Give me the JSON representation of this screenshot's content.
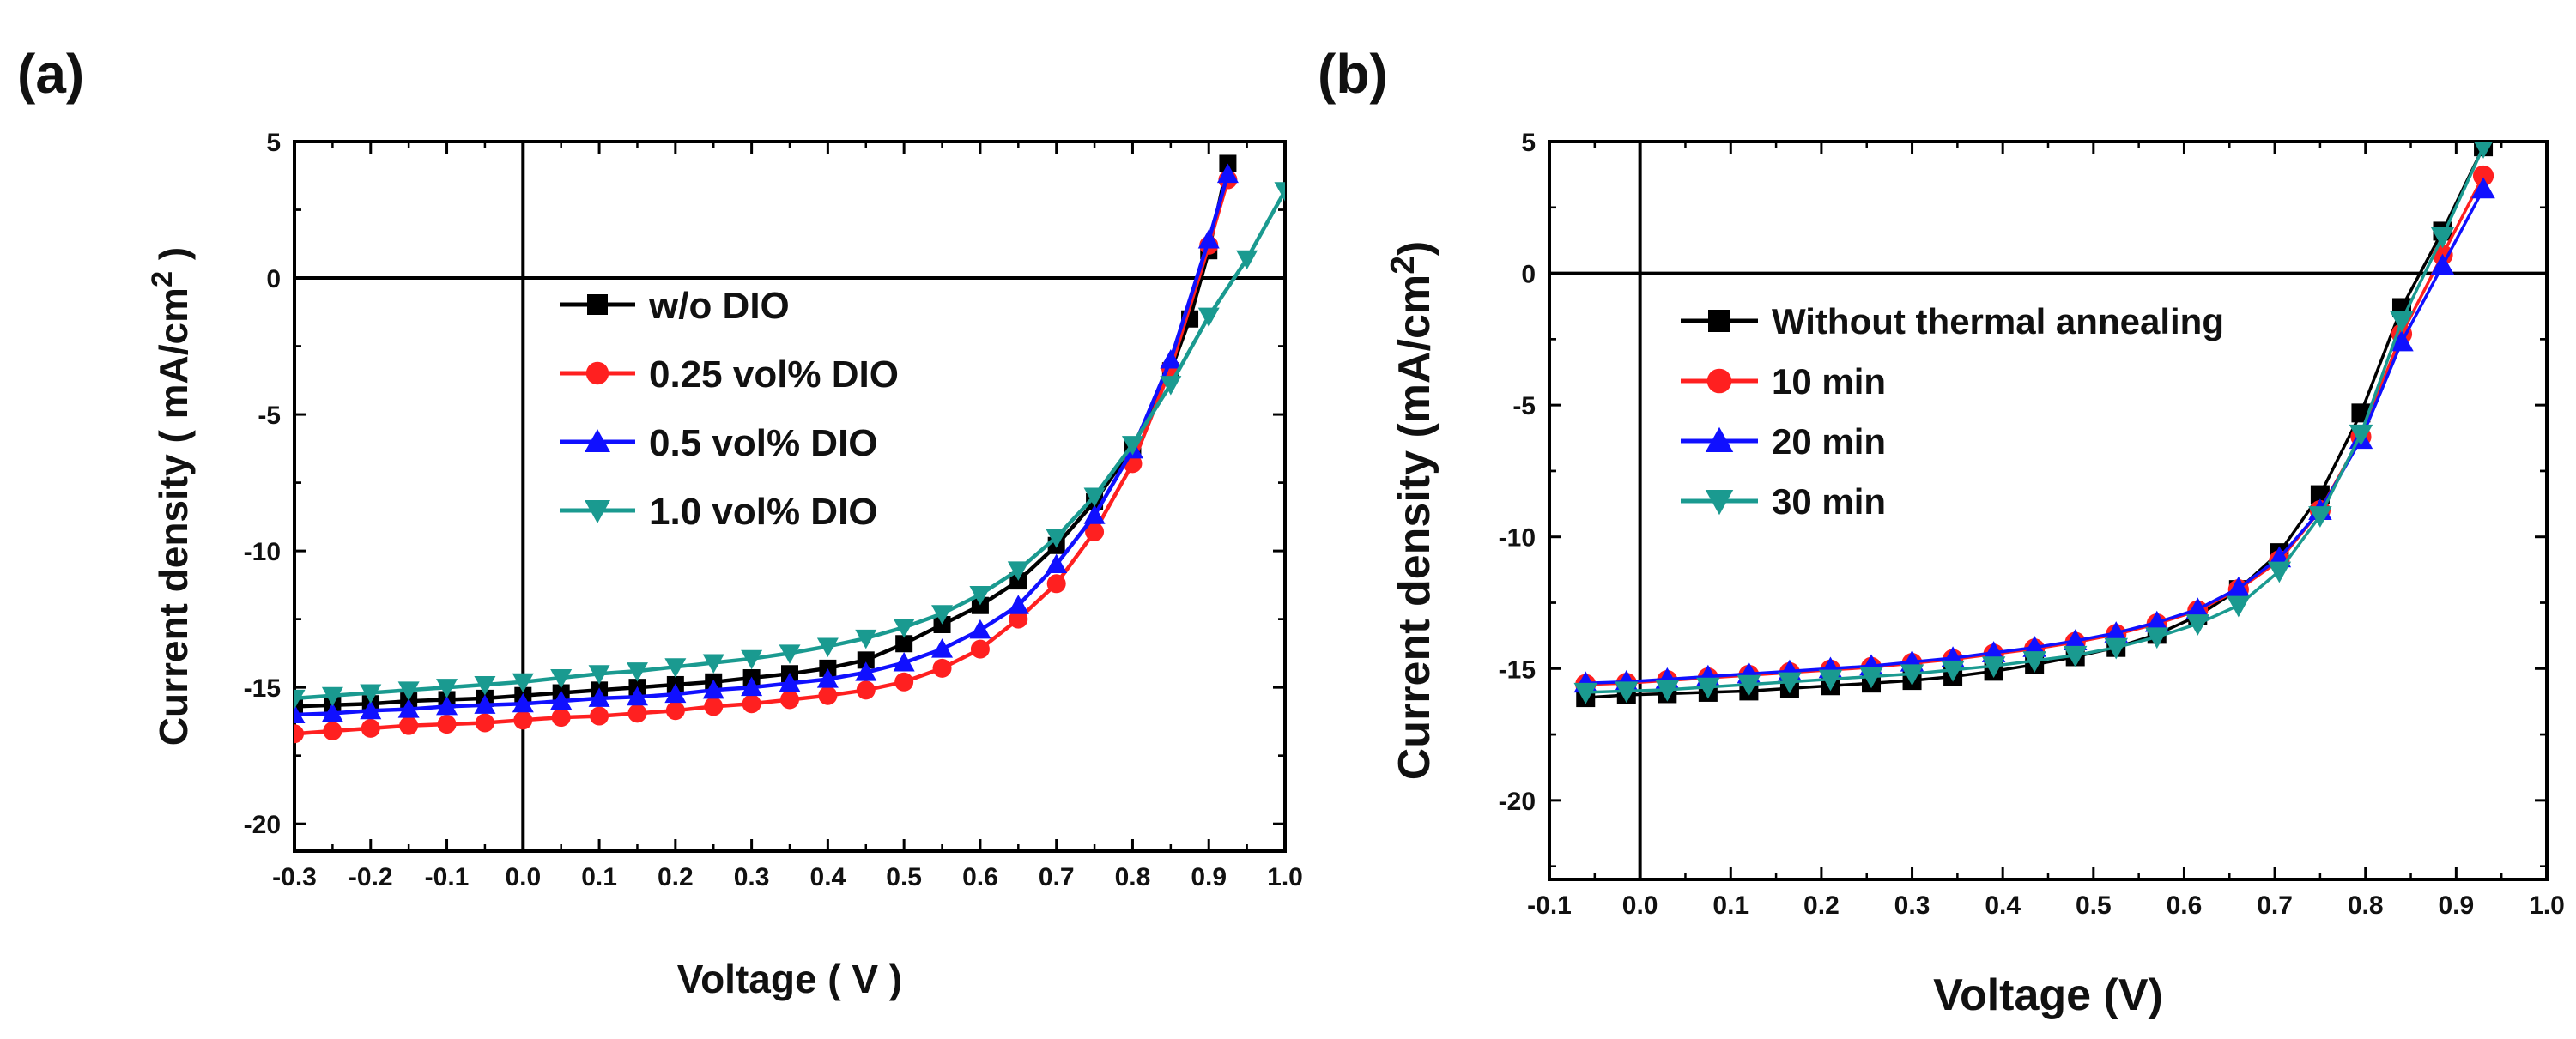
{
  "chart_data": [
    {
      "panel_label": "(a)",
      "type": "line",
      "xlabel": "Voltage ( V )",
      "ylabel": "Current density ( mA/cm",
      "ylabel_sup": "2",
      "ylabel_end": " )",
      "xlim": [
        -0.3,
        1.0
      ],
      "ylim": [
        -21,
        5
      ],
      "xticks": [
        "-0.3",
        "-0.2",
        "-0.1",
        "0.0",
        "0.1",
        "0.2",
        "0.3",
        "0.4",
        "0.5",
        "0.6",
        "0.7",
        "0.8",
        "0.9",
        "1.0"
      ],
      "yticks": [
        "5",
        "0",
        "-5",
        "-10",
        "-15",
        "-20"
      ],
      "legend_position": "center-right",
      "series": [
        {
          "name": "w/o DIO",
          "color": "#000000",
          "marker": "square",
          "x": [
            -0.3,
            -0.25,
            -0.2,
            -0.15,
            -0.1,
            -0.05,
            0,
            0.05,
            0.1,
            0.15,
            0.2,
            0.25,
            0.3,
            0.35,
            0.4,
            0.45,
            0.5,
            0.55,
            0.6,
            0.65,
            0.7,
            0.75,
            0.8,
            0.85,
            0.875,
            0.9,
            0.925
          ],
          "y": [
            -15.7,
            -15.65,
            -15.6,
            -15.5,
            -15.45,
            -15.4,
            -15.3,
            -15.2,
            -15.1,
            -15.0,
            -14.9,
            -14.8,
            -14.65,
            -14.5,
            -14.3,
            -14.0,
            -13.4,
            -12.7,
            -12.0,
            -11.1,
            -9.8,
            -8.2,
            -6.2,
            -3.4,
            -1.5,
            1.0,
            4.2
          ]
        },
        {
          "name": "0.25 vol% DIO",
          "color": "#ff2020",
          "marker": "circle",
          "x": [
            -0.3,
            -0.25,
            -0.2,
            -0.15,
            -0.1,
            -0.05,
            0,
            0.05,
            0.1,
            0.15,
            0.2,
            0.25,
            0.3,
            0.35,
            0.4,
            0.45,
            0.5,
            0.55,
            0.6,
            0.65,
            0.7,
            0.75,
            0.8,
            0.85,
            0.9,
            0.925
          ],
          "y": [
            -16.7,
            -16.6,
            -16.5,
            -16.4,
            -16.35,
            -16.3,
            -16.2,
            -16.1,
            -16.05,
            -15.95,
            -15.85,
            -15.7,
            -15.6,
            -15.45,
            -15.3,
            -15.1,
            -14.8,
            -14.3,
            -13.6,
            -12.5,
            -11.2,
            -9.3,
            -6.8,
            -3.3,
            1.2,
            3.6
          ]
        },
        {
          "name": "0.5 vol% DIO",
          "color": "#1010ff",
          "marker": "triangle-up",
          "x": [
            -0.3,
            -0.25,
            -0.2,
            -0.15,
            -0.1,
            -0.05,
            0,
            0.05,
            0.1,
            0.15,
            0.2,
            0.25,
            0.3,
            0.35,
            0.4,
            0.45,
            0.5,
            0.55,
            0.6,
            0.65,
            0.7,
            0.75,
            0.8,
            0.85,
            0.9,
            0.925
          ],
          "y": [
            -16.0,
            -15.95,
            -15.85,
            -15.8,
            -15.7,
            -15.65,
            -15.6,
            -15.5,
            -15.4,
            -15.35,
            -15.25,
            -15.1,
            -15.0,
            -14.85,
            -14.7,
            -14.45,
            -14.1,
            -13.6,
            -12.9,
            -12.0,
            -10.5,
            -8.7,
            -6.3,
            -3.0,
            1.4,
            3.8
          ]
        },
        {
          "name": "1.0 vol% DIO",
          "color": "#1a9a90",
          "marker": "triangle-down",
          "x": [
            -0.3,
            -0.25,
            -0.2,
            -0.15,
            -0.1,
            -0.05,
            0,
            0.05,
            0.1,
            0.15,
            0.2,
            0.25,
            0.3,
            0.35,
            0.4,
            0.45,
            0.5,
            0.55,
            0.6,
            0.65,
            0.7,
            0.75,
            0.8,
            0.85,
            0.9,
            0.95,
            1.0
          ],
          "y": [
            -15.4,
            -15.3,
            -15.2,
            -15.1,
            -15.0,
            -14.9,
            -14.8,
            -14.65,
            -14.5,
            -14.4,
            -14.25,
            -14.1,
            -13.95,
            -13.75,
            -13.5,
            -13.2,
            -12.8,
            -12.3,
            -11.6,
            -10.7,
            -9.5,
            -8.0,
            -6.1,
            -3.9,
            -1.4,
            0.7,
            3.2
          ]
        }
      ]
    },
    {
      "panel_label": "(b)",
      "type": "line",
      "xlabel": "Voltage (V)",
      "ylabel": "Current density (mA/cm",
      "ylabel_sup": "2",
      "ylabel_end": ")",
      "xlim": [
        -0.1,
        1.0
      ],
      "ylim": [
        -23,
        5
      ],
      "xticks": [
        "-0.1",
        "0.0",
        "0.1",
        "0.2",
        "0.3",
        "0.4",
        "0.5",
        "0.6",
        "0.7",
        "0.8",
        "0.9",
        "1.0"
      ],
      "yticks": [
        "5",
        "0",
        "-5",
        "-10",
        "-15",
        "-20"
      ],
      "legend_position": "center-left",
      "series": [
        {
          "name": "Without thermal annealing",
          "color": "#000000",
          "marker": "square",
          "x": [
            -0.06,
            -0.015,
            0.03,
            0.075,
            0.12,
            0.165,
            0.21,
            0.255,
            0.3,
            0.345,
            0.39,
            0.435,
            0.48,
            0.525,
            0.57,
            0.615,
            0.66,
            0.705,
            0.75,
            0.795,
            0.84,
            0.885,
            0.93
          ],
          "y": [
            -16.1,
            -16.0,
            -15.95,
            -15.9,
            -15.85,
            -15.75,
            -15.65,
            -15.55,
            -15.45,
            -15.3,
            -15.1,
            -14.85,
            -14.55,
            -14.2,
            -13.7,
            -13.0,
            -12.0,
            -10.6,
            -8.4,
            -5.3,
            -1.3,
            1.6,
            4.8
          ]
        },
        {
          "name": "10 min",
          "color": "#ff2020",
          "marker": "circle",
          "x": [
            -0.06,
            -0.015,
            0.03,
            0.075,
            0.12,
            0.165,
            0.21,
            0.255,
            0.3,
            0.345,
            0.39,
            0.435,
            0.48,
            0.525,
            0.57,
            0.615,
            0.66,
            0.705,
            0.75,
            0.795,
            0.84,
            0.885,
            0.93
          ],
          "y": [
            -15.6,
            -15.55,
            -15.45,
            -15.35,
            -15.25,
            -15.15,
            -15.05,
            -14.95,
            -14.8,
            -14.65,
            -14.45,
            -14.25,
            -14.0,
            -13.7,
            -13.3,
            -12.8,
            -12.0,
            -10.9,
            -9.0,
            -6.2,
            -2.3,
            0.7,
            3.7
          ]
        },
        {
          "name": "20 min",
          "color": "#1010ff",
          "marker": "triangle-up",
          "x": [
            -0.06,
            -0.015,
            0.03,
            0.075,
            0.12,
            0.165,
            0.21,
            0.255,
            0.3,
            0.345,
            0.39,
            0.435,
            0.48,
            0.525,
            0.57,
            0.615,
            0.66,
            0.705,
            0.75,
            0.795,
            0.84,
            0.885,
            0.93
          ],
          "y": [
            -15.55,
            -15.5,
            -15.4,
            -15.3,
            -15.2,
            -15.1,
            -15.0,
            -14.9,
            -14.75,
            -14.6,
            -14.4,
            -14.2,
            -13.95,
            -13.65,
            -13.25,
            -12.75,
            -11.95,
            -10.8,
            -9.0,
            -6.3,
            -2.6,
            0.3,
            3.2
          ]
        },
        {
          "name": "30 min",
          "color": "#1a9a90",
          "marker": "triangle-down",
          "x": [
            -0.06,
            -0.015,
            0.03,
            0.075,
            0.12,
            0.165,
            0.21,
            0.255,
            0.3,
            0.345,
            0.39,
            0.435,
            0.48,
            0.525,
            0.57,
            0.615,
            0.66,
            0.705,
            0.75,
            0.795,
            0.84,
            0.885,
            0.93
          ],
          "y": [
            -15.9,
            -15.85,
            -15.8,
            -15.7,
            -15.6,
            -15.5,
            -15.4,
            -15.3,
            -15.2,
            -15.05,
            -14.9,
            -14.7,
            -14.5,
            -14.2,
            -13.8,
            -13.3,
            -12.6,
            -11.3,
            -9.2,
            -6.1,
            -1.8,
            1.4,
            4.8
          ]
        }
      ]
    }
  ]
}
